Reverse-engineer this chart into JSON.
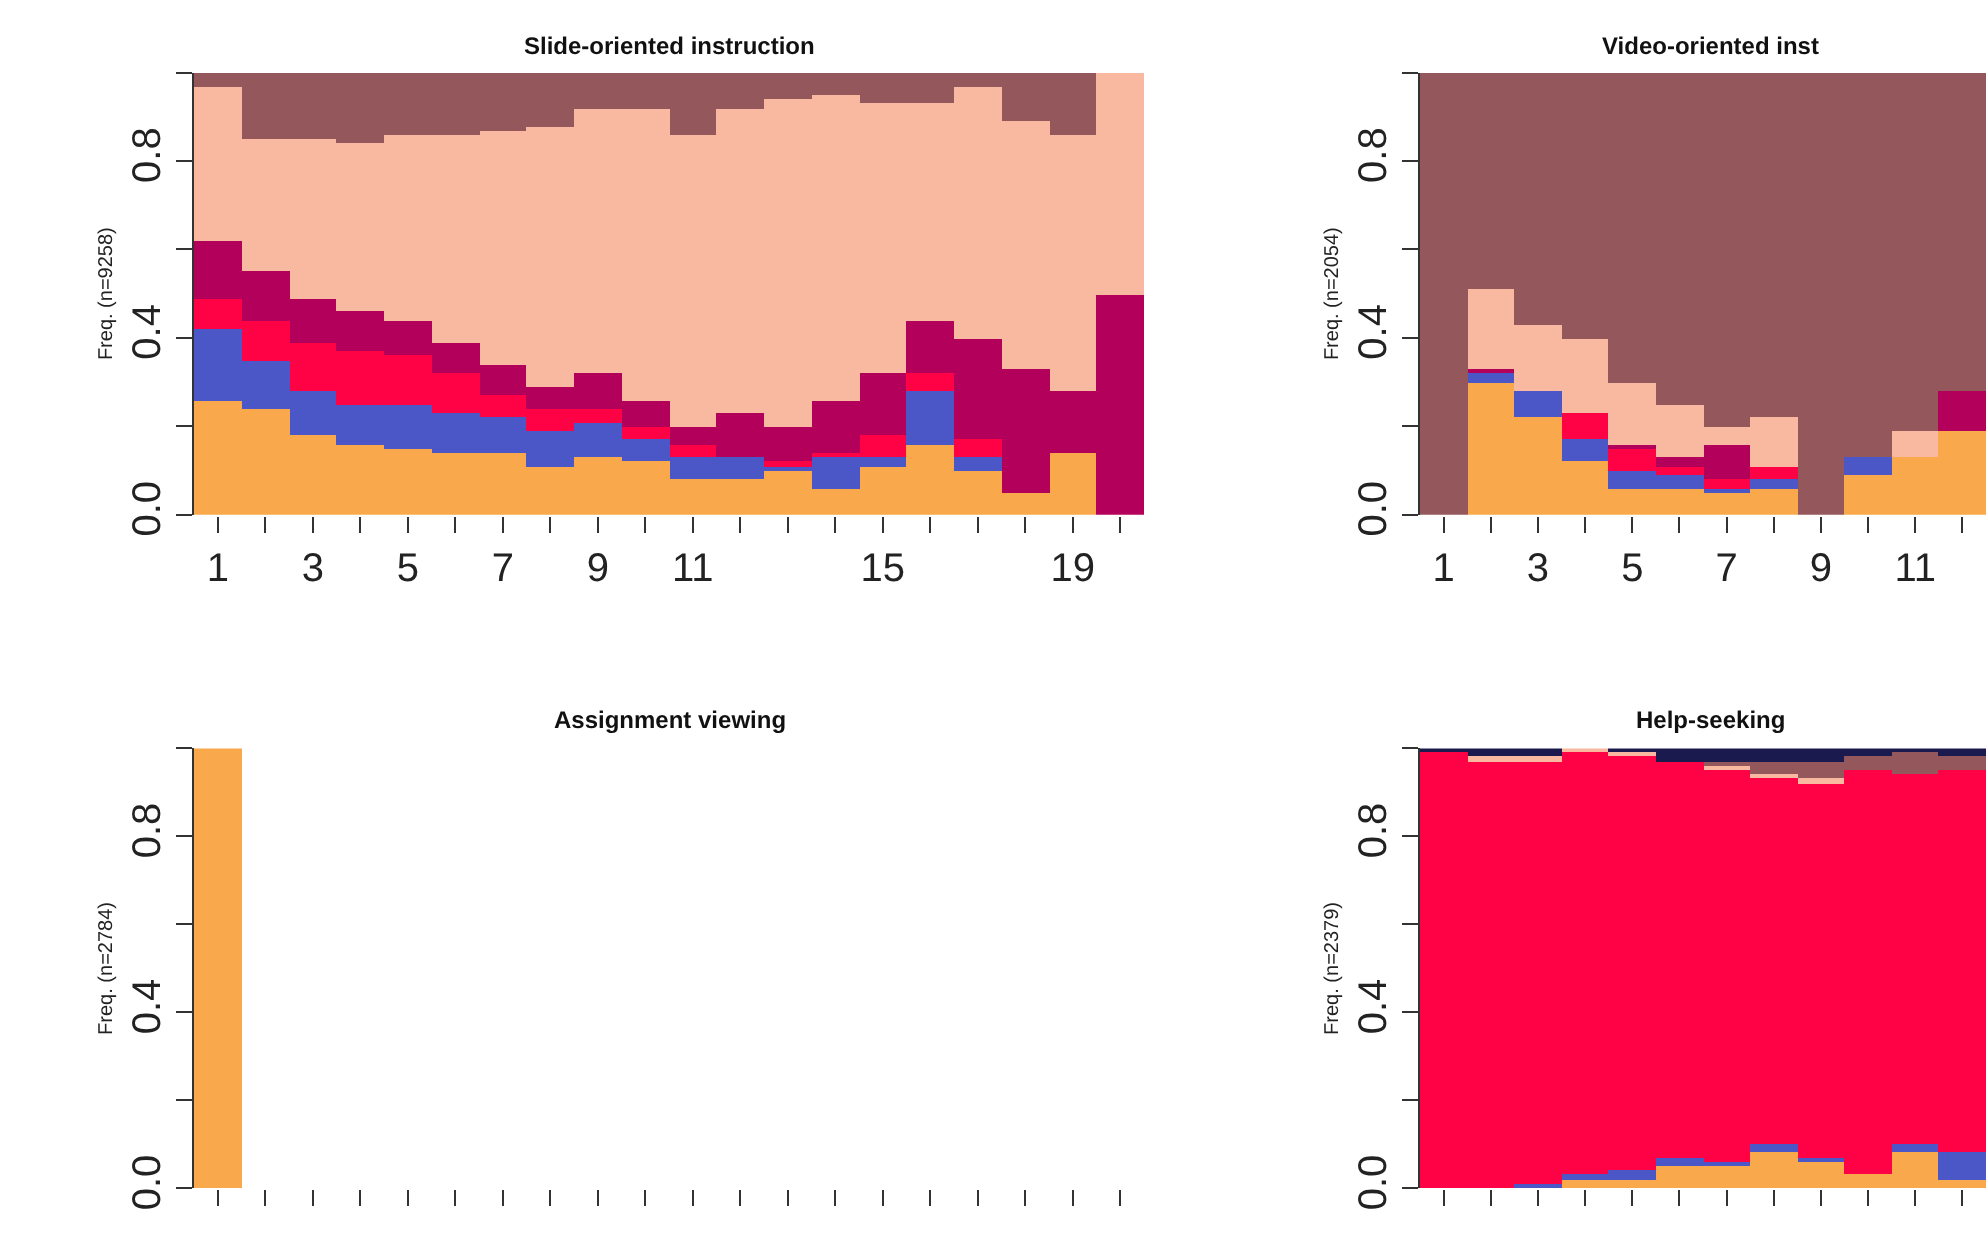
{
  "chart_data": [
    {
      "type": "bar",
      "stacked": true,
      "title": "Slide-oriented instruction",
      "ylabel": "Freq. (n=9258)",
      "categories": [
        "1",
        null,
        "3",
        null,
        "5",
        null,
        "7",
        null,
        "9",
        null,
        "11",
        null,
        null,
        null,
        "15",
        null,
        null,
        null,
        "19",
        null
      ],
      "ylim": [
        0,
        1
      ],
      "yticks": [
        {
          "value": 0,
          "label": "0.0"
        },
        {
          "value": 0.2,
          "label": null
        },
        {
          "value": 0.4,
          "label": "0.4"
        },
        {
          "value": 0.6,
          "label": null
        },
        {
          "value": 0.8,
          "label": "0.8"
        },
        {
          "value": 1.0,
          "label": null
        }
      ],
      "series": [
        {
          "color": "#f9a94b",
          "values": [
            0.26,
            0.24,
            0.18,
            0.16,
            0.15,
            0.14,
            0.14,
            0.11,
            0.13,
            0.12,
            0.08,
            0.08,
            0.1,
            0.06,
            0.11,
            0.16,
            0.1,
            0.05,
            0.14,
            0
          ]
        },
        {
          "color": "#4b57c6",
          "values": [
            0.16,
            0.11,
            0.1,
            0.09,
            0.1,
            0.09,
            0.08,
            0.08,
            0.08,
            0.05,
            0.05,
            0.05,
            0.01,
            0.07,
            0.02,
            0.12,
            0.03,
            0,
            0,
            0
          ]
        },
        {
          "color": "#fe0245",
          "values": [
            0.07,
            0.09,
            0.11,
            0.12,
            0.11,
            0.09,
            0.05,
            0.05,
            0.03,
            0.03,
            0.03,
            0,
            0.01,
            0.01,
            0.05,
            0.04,
            0.04,
            0,
            0,
            0
          ]
        },
        {
          "color": "#b3005b",
          "values": [
            0.13,
            0.11,
            0.1,
            0.09,
            0.08,
            0.07,
            0.07,
            0.05,
            0.08,
            0.06,
            0.04,
            0.1,
            0.08,
            0.12,
            0.14,
            0.12,
            0.23,
            0.28,
            0.14,
            0.5
          ]
        },
        {
          "color": "#f9b8a0",
          "values": [
            0.35,
            0.3,
            0.36,
            0.38,
            0.42,
            0.47,
            0.53,
            0.59,
            0.6,
            0.66,
            0.66,
            0.69,
            0.74,
            0.69,
            0.61,
            0.49,
            0.57,
            0.56,
            0.58,
            0.5
          ]
        },
        {
          "color": "#94575c",
          "values": [
            0.03,
            0.15,
            0.15,
            0.16,
            0.14,
            0.14,
            0.13,
            0.12,
            0.08,
            0.08,
            0.14,
            0.08,
            0.06,
            0.05,
            0.07,
            0.07,
            0.03,
            0.11,
            0.14,
            0
          ]
        }
      ]
    },
    {
      "type": "bar",
      "stacked": true,
      "title": "Video-oriented inst",
      "ylabel": "Freq. (n=2054)",
      "categories": [
        "1",
        null,
        "3",
        null,
        "5",
        null,
        "7",
        null,
        "9",
        null,
        "11",
        null
      ],
      "ylim": [
        0,
        1
      ],
      "yticks": [
        {
          "value": 0,
          "label": "0.0"
        },
        {
          "value": 0.2,
          "label": null
        },
        {
          "value": 0.4,
          "label": "0.4"
        },
        {
          "value": 0.6,
          "label": null
        },
        {
          "value": 0.8,
          "label": "0.8"
        },
        {
          "value": 1.0,
          "label": null
        }
      ],
      "series": [
        {
          "color": "#f9a94b",
          "values": [
            0,
            0.3,
            0.22,
            0.12,
            0.06,
            0.06,
            0.05,
            0.06,
            0,
            0.09,
            0.13,
            0.19
          ]
        },
        {
          "color": "#4b57c6",
          "values": [
            0,
            0.02,
            0.06,
            0.05,
            0.04,
            0.03,
            0.01,
            0.02,
            0,
            0.04,
            0,
            0
          ]
        },
        {
          "color": "#fe0245",
          "values": [
            0,
            0,
            0,
            0.06,
            0.05,
            0.02,
            0.02,
            0.03,
            0,
            0,
            0,
            0
          ]
        },
        {
          "color": "#b3005b",
          "values": [
            0,
            0.01,
            0,
            0,
            0.01,
            0.02,
            0.08,
            0,
            0,
            0,
            0,
            0.09
          ]
        },
        {
          "color": "#f9b8a0",
          "values": [
            0,
            0.18,
            0.15,
            0.17,
            0.14,
            0.12,
            0.04,
            0.11,
            0,
            0,
            0.06,
            0
          ]
        },
        {
          "color": "#94575c",
          "values": [
            1.0,
            0.49,
            0.57,
            0.6,
            0.7,
            0.75,
            0.8,
            0.78,
            1.0,
            0.87,
            0.81,
            0.72
          ]
        }
      ]
    },
    {
      "type": "bar",
      "stacked": true,
      "title": "Assignment viewing",
      "ylabel": "Freq. (n=2784)",
      "tick_labels": "y",
      "categories": [
        null,
        null,
        null,
        null,
        null,
        null,
        null,
        null,
        null,
        null,
        null,
        null,
        null,
        null,
        null,
        null,
        null,
        null,
        null,
        null
      ],
      "ylim": [
        0,
        1
      ],
      "yticks": [
        {
          "value": 0,
          "label": "0.0"
        },
        {
          "value": 0.2,
          "label": null
        },
        {
          "value": 0.4,
          "label": "0.4"
        },
        {
          "value": 0.6,
          "label": null
        },
        {
          "value": 0.8,
          "label": "0.8"
        },
        {
          "value": 1.0,
          "label": null
        }
      ],
      "series": [
        {
          "color": "#f9a94b",
          "values": [
            1.0,
            0,
            0,
            0,
            0,
            0,
            0,
            0,
            0,
            0,
            0,
            0,
            0,
            0,
            0,
            0,
            0,
            0,
            0,
            0
          ]
        }
      ]
    },
    {
      "type": "bar",
      "stacked": true,
      "title": "Help-seeking",
      "ylabel": "Freq. (n=2379)",
      "tick_labels": "y",
      "categories": [
        null,
        null,
        null,
        null,
        null,
        null,
        null,
        null,
        null,
        null,
        null,
        null
      ],
      "ylim": [
        0,
        1
      ],
      "yticks": [
        {
          "value": 0,
          "label": "0.0"
        },
        {
          "value": 0.2,
          "label": null
        },
        {
          "value": 0.4,
          "label": "0.4"
        },
        {
          "value": 0.6,
          "label": null
        },
        {
          "value": 0.8,
          "label": "0.8"
        },
        {
          "value": 1.0,
          "label": null
        }
      ],
      "series": [
        {
          "color": "#f9a94b",
          "values": [
            0,
            0,
            0,
            0.02,
            0.02,
            0.05,
            0.05,
            0.08,
            0.06,
            0.03,
            0.08,
            0.02
          ]
        },
        {
          "color": "#4b57c6",
          "values": [
            0,
            0,
            0.01,
            0.01,
            0.02,
            0.02,
            0.01,
            0.02,
            0.01,
            0,
            0.02,
            0.06
          ]
        },
        {
          "color": "#fe0245",
          "values": [
            0.99,
            0.97,
            0.96,
            0.96,
            0.94,
            0.9,
            0.89,
            0.83,
            0.85,
            0.92,
            0.84,
            0.87
          ]
        },
        {
          "color": "#f9b8a0",
          "values": [
            0,
            0.01,
            0.01,
            0.01,
            0.01,
            0,
            0.01,
            0.01,
            0.01,
            0,
            0,
            0
          ]
        },
        {
          "color": "#94575c",
          "values": [
            0,
            0,
            0,
            0,
            0,
            0,
            0.01,
            0.03,
            0.04,
            0.03,
            0.05,
            0.03
          ]
        },
        {
          "color": "#1b1a4f",
          "values": [
            0.01,
            0.02,
            0.02,
            0,
            0.01,
            0.03,
            0.03,
            0.03,
            0.03,
            0.02,
            0.01,
            0.02
          ]
        }
      ]
    }
  ]
}
